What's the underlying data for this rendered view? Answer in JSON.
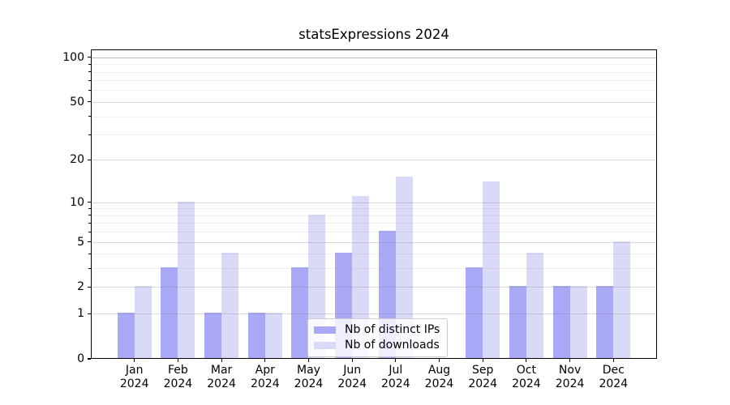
{
  "chart_data": {
    "type": "bar",
    "title": "statsExpressions 2024",
    "xlabel": "",
    "ylabel": "",
    "categories": [
      "Jan",
      "Feb",
      "Mar",
      "Apr",
      "May",
      "Jun",
      "Jul",
      "Aug",
      "Sep",
      "Oct",
      "Nov",
      "Dec"
    ],
    "year_label": "2024",
    "series": [
      {
        "name": "Nb of distinct IPs",
        "color": "#a9a9f7",
        "values": [
          1,
          3,
          1,
          1,
          3,
          4,
          6,
          0,
          3,
          2,
          2,
          2
        ]
      },
      {
        "name": "Nb of downloads",
        "color": "#d9d9f8",
        "values": [
          2,
          10,
          4,
          1,
          8,
          11,
          15,
          0,
          14,
          4,
          2,
          5
        ]
      }
    ],
    "yscale": "log1p",
    "ylim": [
      0,
      113
    ],
    "y_major_ticks": [
      0,
      1,
      2,
      5,
      10,
      20,
      50,
      100
    ],
    "y_minor_gridlines": [
      3,
      4,
      6,
      7,
      8,
      9,
      30,
      40,
      60,
      70,
      80,
      90
    ],
    "grid": "horizontal",
    "legend_position": "lower center"
  }
}
